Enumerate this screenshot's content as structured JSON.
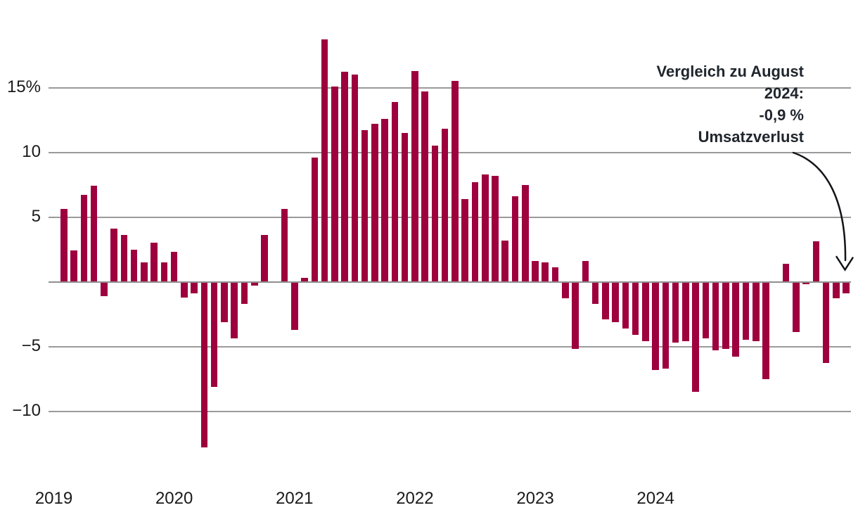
{
  "chart_data": {
    "type": "bar",
    "title": "",
    "xlabel": "",
    "ylabel": "",
    "unit": "%",
    "bar_color": "#9E003E",
    "grid_color": "#9A9A9A",
    "ylim": [
      -13.5,
      19.5
    ],
    "grid": true,
    "legend_position": "none",
    "x": [
      "2019-02",
      "2019-03",
      "2019-04",
      "2019-05",
      "2019-06",
      "2019-07",
      "2019-08",
      "2019-09",
      "2019-10",
      "2019-11",
      "2019-12",
      "2020-01",
      "2020-02",
      "2020-03",
      "2020-04",
      "2020-05",
      "2020-06",
      "2020-07",
      "2020-08",
      "2020-09",
      "2020-10",
      "2020-11",
      "2020-12",
      "2021-01",
      "2021-02",
      "2021-03",
      "2021-04",
      "2021-05",
      "2021-06",
      "2021-07",
      "2021-08",
      "2021-09",
      "2021-10",
      "2021-11",
      "2021-12",
      "2022-01",
      "2022-02",
      "2022-03",
      "2022-04",
      "2022-05",
      "2022-06",
      "2022-07",
      "2022-08",
      "2022-09",
      "2022-10",
      "2022-11",
      "2022-12",
      "2023-01",
      "2023-02",
      "2023-03",
      "2023-04",
      "2023-05",
      "2023-06",
      "2023-07",
      "2023-08",
      "2023-09",
      "2023-10",
      "2023-11",
      "2023-12",
      "2024-01",
      "2024-02",
      "2024-03",
      "2024-04",
      "2024-05",
      "2024-06",
      "2024-07",
      "2024-08",
      "2024-09",
      "2024-10",
      "2024-11",
      "2024-12",
      "2025-01",
      "2025-02",
      "2025-03",
      "2025-04",
      "2025-05",
      "2025-06",
      "2025-07",
      "2025-08"
    ],
    "values": [
      5.6,
      2.4,
      6.7,
      7.4,
      -1.1,
      4.1,
      3.6,
      2.5,
      1.5,
      3.0,
      1.5,
      2.3,
      -1.2,
      -0.9,
      -12.8,
      -8.1,
      -3.1,
      -4.4,
      -1.7,
      -0.3,
      3.6,
      0.0,
      5.6,
      -3.7,
      0.3,
      9.6,
      18.7,
      15.1,
      16.2,
      16.0,
      11.7,
      12.2,
      12.6,
      13.9,
      11.5,
      16.3,
      14.7,
      10.5,
      11.8,
      15.5,
      6.4,
      7.7,
      8.3,
      8.2,
      3.2,
      6.6,
      7.5,
      1.6,
      1.5,
      1.1,
      -1.3,
      -5.2,
      1.6,
      -1.7,
      -2.9,
      -3.1,
      -3.6,
      -4.1,
      -4.6,
      -6.8,
      -6.7,
      -4.7,
      -4.6,
      -8.5,
      -4.4,
      -5.3,
      -5.2,
      -5.8,
      -4.5,
      -4.6,
      -7.5,
      0.0,
      1.4,
      -3.9,
      -0.2,
      3.1,
      -6.3,
      -1.3,
      -0.9
    ],
    "yticks": [
      {
        "label": "15%",
        "value": 15
      },
      {
        "label": "10",
        "value": 10
      },
      {
        "label": "5",
        "value": 5
      },
      {
        "label": "−5",
        "value": -5
      },
      {
        "label": "−10",
        "value": -10
      }
    ],
    "gridline_values": [
      15,
      10,
      5,
      0,
      -5,
      -10
    ],
    "year_labels": [
      "2019",
      "2020",
      "2021",
      "2022",
      "2023",
      "2024"
    ]
  },
  "annotation": {
    "lines": [
      "Vergleich zu August",
      "2024:",
      "-0,9 %",
      "Umsatzverlust"
    ],
    "color": "#20262d"
  }
}
